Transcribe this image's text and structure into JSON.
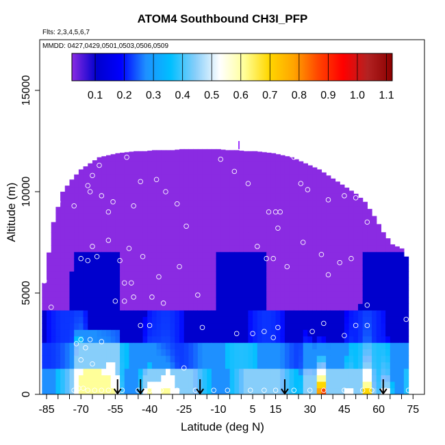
{
  "page": {
    "title": "ATOM4 Southbound CH3I_PFP",
    "flights_note": "Flts: 2,3,4,5,6,7",
    "dates_note": "MMDD: 0427,0429,0501,0503,0506,0509"
  },
  "chart_data": {
    "type": "heatmap",
    "title": "ATOM4 Southbound CH3I_PFP",
    "xlabel": "Latitude (deg N)",
    "ylabel": "Altitude (m)",
    "xlim": [
      -88,
      80
    ],
    "ylim": [
      0,
      17500
    ],
    "x_ticks": [
      -85,
      -70,
      -55,
      -40,
      -25,
      -10,
      5,
      15,
      30,
      45,
      60,
      75
    ],
    "x_tick_labels": [
      "-85",
      "-70",
      "-55",
      "-40",
      "-25",
      "-10",
      "5",
      "15",
      "30",
      "45",
      "60",
      "75"
    ],
    "x_minor_ticks": [
      -80,
      -75,
      -65,
      -60,
      -50,
      -45,
      -35,
      -30,
      -20,
      -15,
      -5,
      0,
      10,
      20,
      25,
      35,
      40,
      50,
      55,
      65,
      70
    ],
    "y_ticks": [
      0,
      5000,
      10000,
      15000
    ],
    "y_tick_labels": [
      "0",
      "5000",
      "10000",
      "15000"
    ],
    "colorbar": {
      "ticks": [
        0.1,
        0.2,
        0.3,
        0.4,
        0.5,
        0.6,
        0.7,
        0.8,
        0.9,
        1.0,
        1.1
      ],
      "tick_labels": [
        "0.1",
        "0.2",
        "0.3",
        "0.4",
        "0.5",
        "0.6",
        "0.7",
        "0.8",
        "0.9",
        "1.0",
        "1.1"
      ],
      "range": [
        0.02,
        1.12
      ],
      "colors": [
        "#8a2be2",
        "#0000cd",
        "#0000ff",
        "#1e90ff",
        "#00bfff",
        "#87cefa",
        "#ffffff",
        "#ffff99",
        "#ffd700",
        "#ffa500",
        "#ff4500",
        "#ff0000",
        "#b22222",
        "#8b0000"
      ]
    },
    "coverage": {
      "lat": [
        -86,
        -82,
        -78,
        -74,
        -70,
        -66,
        -62,
        -58,
        -54,
        -50,
        -46,
        -42,
        -38,
        -34,
        -30,
        -26,
        -22,
        -18,
        -14,
        -10,
        -6,
        -2,
        2,
        6,
        10,
        14,
        18,
        22,
        26,
        30,
        34,
        38,
        42,
        46,
        50,
        54,
        58,
        62,
        66,
        70,
        72
      ],
      "top": [
        5500,
        8500,
        10000,
        10600,
        11100,
        11400,
        11700,
        11800,
        11900,
        11950,
        12000,
        12000,
        12050,
        12050,
        12050,
        12100,
        12100,
        12100,
        12100,
        12100,
        12050,
        12050,
        12000,
        12000,
        11950,
        11900,
        11800,
        11700,
        11500,
        11300,
        11100,
        10800,
        10500,
        10200,
        9900,
        9500,
        8800,
        8000,
        7400,
        7200,
        6800
      ]
    },
    "surface_sources": [
      {
        "lat": -70,
        "value": 0.62,
        "width": 3,
        "depth": 1500
      },
      {
        "lat": -58,
        "value": 0.7,
        "width": 4,
        "depth": 900
      },
      {
        "lat": -40,
        "value": 0.68,
        "width": 3,
        "depth": 900
      },
      {
        "lat": -33,
        "value": 0.72,
        "width": 4,
        "depth": 700
      },
      {
        "lat": 29,
        "value": 0.58,
        "width": 2,
        "depth": 1700
      },
      {
        "lat": 34,
        "value": 0.82,
        "width": 2,
        "depth": 1200
      },
      {
        "lat": 36,
        "value": 0.95,
        "width": 1.5,
        "depth": 900
      },
      {
        "lat": 47,
        "value": 0.55,
        "width": 2,
        "depth": 1000
      },
      {
        "lat": 55,
        "value": 0.9,
        "width": 2,
        "depth": 900
      },
      {
        "lat": 63,
        "value": 0.7,
        "width": 2,
        "depth": 700
      }
    ],
    "samples": [
      {
        "lat": -86,
        "alt": 5600
      },
      {
        "lat": -80,
        "alt": 9500
      },
      {
        "lat": -83,
        "alt": 4300
      },
      {
        "lat": -73,
        "alt": 9300
      },
      {
        "lat": -70,
        "alt": 6700
      },
      {
        "lat": -67,
        "alt": 6600
      },
      {
        "lat": -65,
        "alt": 7300
      },
      {
        "lat": -63,
        "alt": 6800
      },
      {
        "lat": -67,
        "alt": 10300
      },
      {
        "lat": -66,
        "alt": 10000
      },
      {
        "lat": -65,
        "alt": 10800
      },
      {
        "lat": -62,
        "alt": 11300
      },
      {
        "lat": -61,
        "alt": 9800
      },
      {
        "lat": -58,
        "alt": 9000
      },
      {
        "lat": -56,
        "alt": 9500
      },
      {
        "lat": -58,
        "alt": 7600
      },
      {
        "lat": -53,
        "alt": 6600
      },
      {
        "lat": -50,
        "alt": 11700
      },
      {
        "lat": -49,
        "alt": 7200
      },
      {
        "lat": -47,
        "alt": 9300
      },
      {
        "lat": -44,
        "alt": 10500
      },
      {
        "lat": -37,
        "alt": 10600
      },
      {
        "lat": -33,
        "alt": 10000
      },
      {
        "lat": -28,
        "alt": 9400
      },
      {
        "lat": -24,
        "alt": 8300
      },
      {
        "lat": -43,
        "alt": 6800
      },
      {
        "lat": -51,
        "alt": 5500
      },
      {
        "lat": -48,
        "alt": 5500
      },
      {
        "lat": -47,
        "alt": 4800
      },
      {
        "lat": -39,
        "alt": 4800
      },
      {
        "lat": -36,
        "alt": 5800
      },
      {
        "lat": -34,
        "alt": 4500
      },
      {
        "lat": -27,
        "alt": 6300
      },
      {
        "lat": -19,
        "alt": 4900
      },
      {
        "lat": -9,
        "alt": 11600
      },
      {
        "lat": -3,
        "alt": 11000
      },
      {
        "lat": 3,
        "alt": 10400
      },
      {
        "lat": 12,
        "alt": 9000
      },
      {
        "lat": 15,
        "alt": 9000
      },
      {
        "lat": 17,
        "alt": 9000
      },
      {
        "lat": 16,
        "alt": 8200
      },
      {
        "lat": 23,
        "alt": 11700
      },
      {
        "lat": 26,
        "alt": 10400
      },
      {
        "lat": 29,
        "alt": 10100
      },
      {
        "lat": 38,
        "alt": 9600
      },
      {
        "lat": 45,
        "alt": 9800
      },
      {
        "lat": 50,
        "alt": 9700
      },
      {
        "lat": 55,
        "alt": 8500
      },
      {
        "lat": 7,
        "alt": 7300
      },
      {
        "lat": 11,
        "alt": 6700
      },
      {
        "lat": 14,
        "alt": 6700
      },
      {
        "lat": 20,
        "alt": 6300
      },
      {
        "lat": 27,
        "alt": 7500
      },
      {
        "lat": 35,
        "alt": 6900
      },
      {
        "lat": 38,
        "alt": 5900
      },
      {
        "lat": 43,
        "alt": 6500
      },
      {
        "lat": 48,
        "alt": 6700
      },
      {
        "lat": 55,
        "alt": 4400
      },
      {
        "lat": 72,
        "alt": 7300
      },
      {
        "lat": 72,
        "alt": 3700
      },
      {
        "lat": -55,
        "alt": 4600
      },
      {
        "lat": -51,
        "alt": 4600
      },
      {
        "lat": -44,
        "alt": 3400
      },
      {
        "lat": -40,
        "alt": 3400
      },
      {
        "lat": -17,
        "alt": 3300
      },
      {
        "lat": -2,
        "alt": 3000
      },
      {
        "lat": 5,
        "alt": 3000
      },
      {
        "lat": 10,
        "alt": 3100
      },
      {
        "lat": 14,
        "alt": 2800
      },
      {
        "lat": 16,
        "alt": 3300
      },
      {
        "lat": 31,
        "alt": 3100
      },
      {
        "lat": 36,
        "alt": 3500
      },
      {
        "lat": 45,
        "alt": 2900
      },
      {
        "lat": 50,
        "alt": 3400
      },
      {
        "lat": 55,
        "alt": 3400
      },
      {
        "lat": -72,
        "alt": 2500
      },
      {
        "lat": -70,
        "alt": 2700
      },
      {
        "lat": -68,
        "alt": 2300
      },
      {
        "lat": -66,
        "alt": 2700
      },
      {
        "lat": -61,
        "alt": 2600
      },
      {
        "lat": -70,
        "alt": 1700
      },
      {
        "lat": -65,
        "alt": 1500
      },
      {
        "lat": -25,
        "alt": 1300
      },
      {
        "lat": -73,
        "alt": 200
      },
      {
        "lat": -71,
        "alt": 300
      },
      {
        "lat": -69,
        "alt": 300
      },
      {
        "lat": -67,
        "alt": 200
      },
      {
        "lat": -64,
        "alt": 200
      },
      {
        "lat": -61,
        "alt": 200
      },
      {
        "lat": -58,
        "alt": 200
      },
      {
        "lat": -52,
        "alt": 200
      },
      {
        "lat": -45,
        "alt": 200
      },
      {
        "lat": -40,
        "alt": 200
      },
      {
        "lat": -35,
        "alt": 200
      },
      {
        "lat": -28,
        "alt": 200
      },
      {
        "lat": -20,
        "alt": 200
      },
      {
        "lat": -12,
        "alt": 200
      },
      {
        "lat": -6,
        "alt": 200
      },
      {
        "lat": 4,
        "alt": 200
      },
      {
        "lat": 10,
        "alt": 200
      },
      {
        "lat": 15,
        "alt": 200
      },
      {
        "lat": 23,
        "alt": 200
      },
      {
        "lat": 30,
        "alt": 200
      },
      {
        "lat": 36,
        "alt": 200
      },
      {
        "lat": 45,
        "alt": 200
      },
      {
        "lat": 53,
        "alt": 200
      },
      {
        "lat": 57,
        "alt": 200
      },
      {
        "lat": 63,
        "alt": 200
      },
      {
        "lat": 73,
        "alt": 200
      }
    ],
    "arrows_lat": [
      -54,
      -44,
      -18,
      19,
      62
    ],
    "top_marker_lat": -1
  }
}
